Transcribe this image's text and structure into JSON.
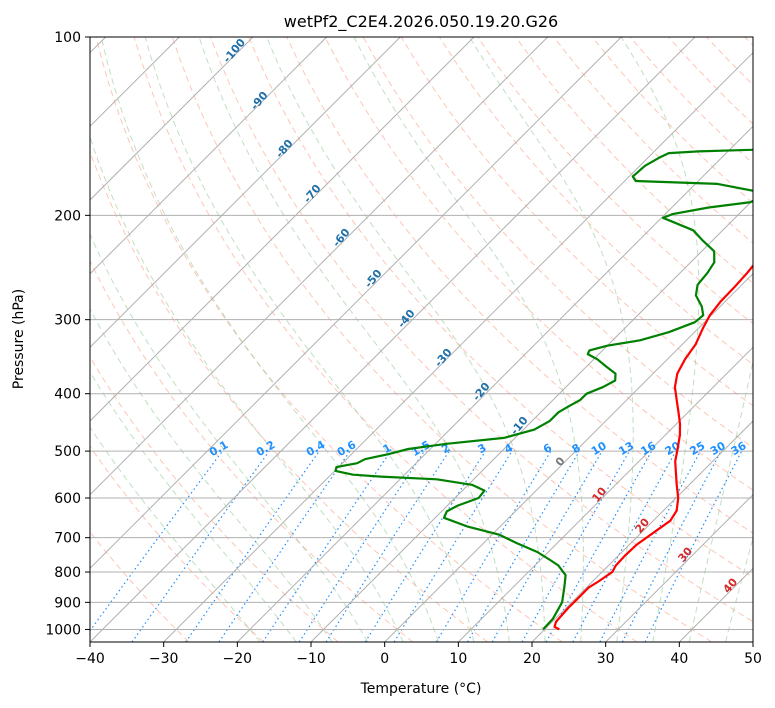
{
  "chart_data": {
    "type": "line",
    "title": "wetPf2_C2E4.2026.050.19.20.G26",
    "xlabel": "Temperature (°C)",
    "ylabel": "Pressure (hPa)",
    "xlim": [
      -40,
      50
    ],
    "ylim": [
      1050,
      100
    ],
    "y_scale": "log",
    "grid": true,
    "x_ticks": [
      -40,
      -30,
      -20,
      -10,
      0,
      10,
      20,
      30,
      40,
      50
    ],
    "y_ticks": [
      100,
      200,
      300,
      400,
      500,
      600,
      700,
      800,
      900,
      1000
    ],
    "series": [
      {
        "color": "#ff0000",
        "points": [
          [
            22,
            1000
          ],
          [
            21,
            990
          ],
          [
            20.5,
            970
          ],
          [
            20.3,
            920
          ],
          [
            20.3,
            880
          ],
          [
            20.3,
            850
          ],
          [
            20.8,
            830
          ],
          [
            21.4,
            800
          ],
          [
            21.0,
            780
          ],
          [
            20.9,
            750
          ],
          [
            21.0,
            720
          ],
          [
            21.8,
            680
          ],
          [
            22.3,
            655
          ],
          [
            21.8,
            630
          ],
          [
            20.3,
            600
          ],
          [
            18.3,
            570
          ],
          [
            16.3,
            540
          ],
          [
            14.9,
            520
          ],
          [
            13.8,
            500
          ],
          [
            12.0,
            470
          ],
          [
            10.5,
            450
          ],
          [
            8.7,
            430
          ],
          [
            6.8,
            410
          ],
          [
            4.8,
            390
          ],
          [
            3.3,
            370
          ],
          [
            2.4,
            350
          ],
          [
            1.8,
            330
          ],
          [
            0.6,
            310
          ],
          [
            -0.2,
            295
          ],
          [
            -0.6,
            280
          ],
          [
            -0.7,
            265
          ],
          [
            -0.9,
            250
          ],
          [
            -1.3,
            235
          ],
          [
            -1.4,
            220
          ],
          [
            -1.0,
            208
          ],
          [
            -0.5,
            198
          ],
          [
            1.0,
            185
          ],
          [
            3.0,
            172
          ],
          [
            5.9,
            163
          ],
          [
            8.0,
            155
          ],
          [
            9.6,
            148
          ],
          [
            11.0,
            140
          ],
          [
            10.8,
            132
          ],
          [
            9.9,
            125
          ],
          [
            9.5,
            118
          ],
          [
            9.6,
            112
          ],
          [
            10.5,
            107
          ],
          [
            13.6,
            104
          ],
          [
            14.5,
            102
          ],
          [
            14.7,
            100
          ]
        ]
      },
      {
        "color": "#008000",
        "points": [
          [
            19.8,
            1000
          ],
          [
            19.7,
            960
          ],
          [
            18.7,
            900
          ],
          [
            17.0,
            850
          ],
          [
            15.5,
            810
          ],
          [
            13.2,
            780
          ],
          [
            11.5,
            765
          ],
          [
            8.5,
            740
          ],
          [
            4.5,
            715
          ],
          [
            1.0,
            692
          ],
          [
            -4.5,
            670
          ],
          [
            -8.8,
            648
          ],
          [
            -9.3,
            632
          ],
          [
            -8.6,
            618
          ],
          [
            -6.8,
            600
          ],
          [
            -7.0,
            583
          ],
          [
            -9.5,
            570
          ],
          [
            -15.0,
            558
          ],
          [
            -23.0,
            552
          ],
          [
            -27.0,
            548
          ],
          [
            -29.9,
            540
          ],
          [
            -30.3,
            532
          ],
          [
            -28.0,
            524
          ],
          [
            -27.5,
            516
          ],
          [
            -25.0,
            506
          ],
          [
            -23.0,
            496
          ],
          [
            -18.5,
            486
          ],
          [
            -11.5,
            475
          ],
          [
            -8.5,
            460
          ],
          [
            -7.6,
            445
          ],
          [
            -7.6,
            430
          ],
          [
            -7.0,
            420
          ],
          [
            -6.3,
            410
          ],
          [
            -6.3,
            400
          ],
          [
            -5.0,
            390
          ],
          [
            -4.2,
            380
          ],
          [
            -5.1,
            370
          ],
          [
            -7.3,
            360
          ],
          [
            -9.5,
            350
          ],
          [
            -11.5,
            343
          ],
          [
            -11.8,
            338
          ],
          [
            -10.0,
            332
          ],
          [
            -6.3,
            325
          ],
          [
            -3.5,
            315
          ],
          [
            -1.3,
            303
          ],
          [
            -1.1,
            295
          ],
          [
            -2.5,
            285
          ],
          [
            -4.8,
            273
          ],
          [
            -6.0,
            262
          ],
          [
            -6.3,
            250
          ],
          [
            -6.8,
            240
          ],
          [
            -8.3,
            230
          ],
          [
            -11.5,
            220
          ],
          [
            -14.0,
            212
          ],
          [
            -18.0,
            205
          ],
          [
            -19.8,
            202
          ],
          [
            -19.0,
            199
          ],
          [
            -15.0,
            194
          ],
          [
            -10.0,
            190
          ],
          [
            -9.5,
            186
          ],
          [
            -11.0,
            182
          ],
          [
            -17.0,
            177
          ],
          [
            -28.5,
            175
          ],
          [
            -29.5,
            172
          ],
          [
            -29.3,
            165
          ],
          [
            -28.5,
            160
          ],
          [
            -27.8,
            157
          ],
          [
            -24.0,
            156
          ],
          [
            -17.0,
            155
          ],
          [
            -12.0,
            152
          ],
          [
            -8.0,
            148
          ],
          [
            -6.0,
            143
          ],
          [
            -4.3,
            137
          ],
          [
            -3.3,
            130
          ],
          [
            -3.5,
            122
          ],
          [
            -3.2,
            115
          ],
          [
            -2.6,
            110
          ],
          [
            -1.0,
            105
          ],
          [
            -0.5,
            103
          ],
          [
            0.5,
            101
          ],
          [
            1.2,
            100
          ]
        ]
      }
    ],
    "mixing_ratio_labels": [
      "0.1",
      "0.2",
      "0.4",
      "0.6",
      "1",
      "1.5",
      "2",
      "3",
      "4",
      "6",
      "8",
      "10",
      "13",
      "16",
      "20",
      "25",
      "30",
      "36"
    ],
    "dry_adiabat_labels": [
      "-100",
      "-90",
      "-80",
      "-70",
      "-60",
      "-50",
      "-40",
      "-30",
      "-20",
      "-10"
    ],
    "moist_adiabat_labels": [
      "0",
      "10",
      "20",
      "30",
      "40"
    ]
  }
}
